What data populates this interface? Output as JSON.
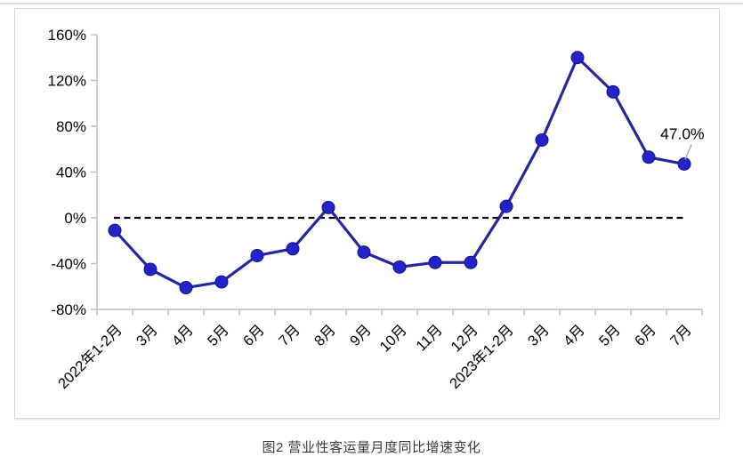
{
  "page": {
    "caption": "图2 营业性客运量月度同比增速变化"
  },
  "chart_data": {
    "type": "line",
    "title": "图2 营业性客运量月度同比增速变化",
    "categories": [
      "2022年1-2月",
      "3月",
      "4月",
      "5月",
      "6月",
      "7月",
      "8月",
      "9月",
      "10月",
      "11月",
      "12月",
      "2023年1-2月",
      "3月",
      "4月",
      "5月",
      "6月",
      "7月"
    ],
    "series": [
      {
        "name": "营业性客运量月度同比增速",
        "values": [
          -11,
          -45,
          -61,
          -56,
          -33,
          -27,
          9,
          -30,
          -43,
          -39,
          -39,
          10,
          68,
          140,
          110,
          53,
          47.0
        ]
      }
    ],
    "unit": "%",
    "ylim": [
      -80,
      160
    ],
    "ytick_step": 40,
    "yticks": [
      {
        "value": 160,
        "label": "160%"
      },
      {
        "value": 120,
        "label": "120%"
      },
      {
        "value": 80,
        "label": "80%"
      },
      {
        "value": 40,
        "label": "40%"
      },
      {
        "value": 0,
        "label": "0%"
      },
      {
        "value": -40,
        "label": "-40%"
      },
      {
        "value": -80,
        "label": "-80%"
      }
    ],
    "zero_line": {
      "style": "dashed",
      "color": "#000000"
    },
    "end_label": {
      "text": "47.0%",
      "point_index": 16
    },
    "grid": "off",
    "legend": "none",
    "colors": {
      "line": "#26269C",
      "marker_fill": "#2323CC",
      "marker_stroke": "#15157A",
      "axis": "#BFBFBF",
      "tick_label": "#000000",
      "leader_line": "#A6A6A6",
      "frame_border": "#D6D6D6"
    }
  }
}
